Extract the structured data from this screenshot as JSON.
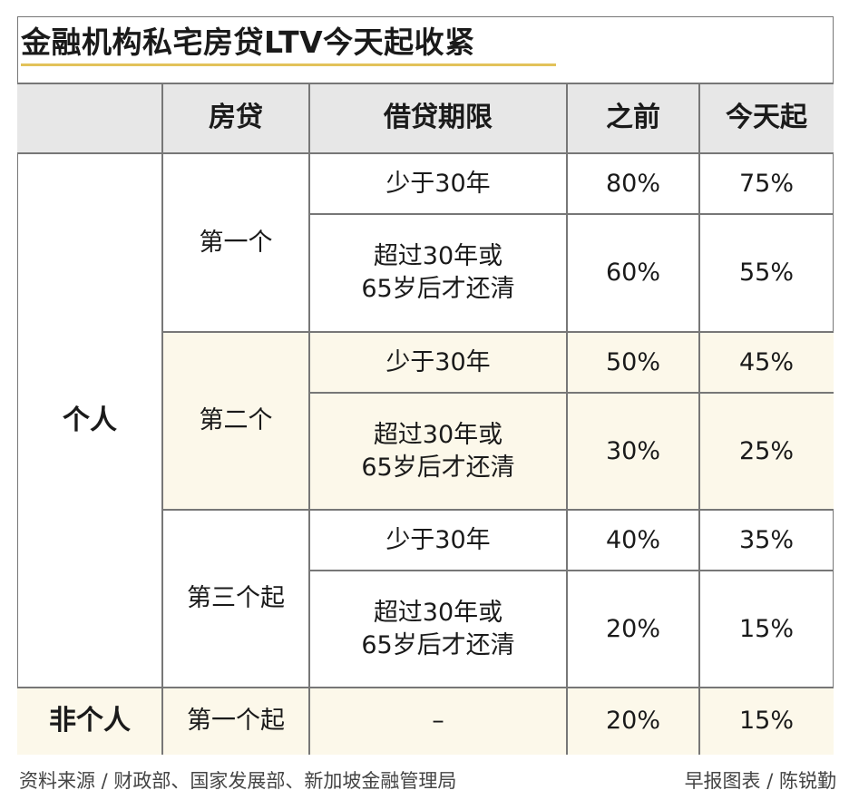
{
  "title": "金融机构私宅房贷LTV今天起收紧",
  "header": {
    "col0": "",
    "col1": "房贷",
    "col2": "借贷期限",
    "col3": "之前",
    "col4": "今天起"
  },
  "groups": {
    "individual": {
      "label": "个人",
      "loans": [
        {
          "label": "第一个",
          "short": {
            "term": "少于30年",
            "before": "80%",
            "now": "75%"
          },
          "long": {
            "term_line1": "超过30年或",
            "term_line2": "65岁后才还清",
            "before": "60%",
            "now": "55%"
          }
        },
        {
          "label": "第二个",
          "short": {
            "term": "少于30年",
            "before": "50%",
            "now": "45%"
          },
          "long": {
            "term_line1": "超过30年或",
            "term_line2": "65岁后才还清",
            "before": "30%",
            "now": "25%"
          }
        },
        {
          "label": "第三个起",
          "short": {
            "term": "少于30年",
            "before": "40%",
            "now": "35%"
          },
          "long": {
            "term_line1": "超过30年或",
            "term_line2": "65岁后才还清",
            "before": "20%",
            "now": "15%"
          }
        }
      ]
    },
    "non_individual": {
      "label": "非个人",
      "loan": "第一个起",
      "term": "–",
      "before": "20%",
      "now": "15%"
    }
  },
  "footer": {
    "source": "资料来源 / 财政部、国家发展部、新加坡金融管理局",
    "credit": "早报图表 / 陈锐勤"
  },
  "colors": {
    "header_bg": "#e7e7e7",
    "shade_bg": "#fcf8ea",
    "title_rule": "#e2c25a",
    "border": "#777777"
  }
}
